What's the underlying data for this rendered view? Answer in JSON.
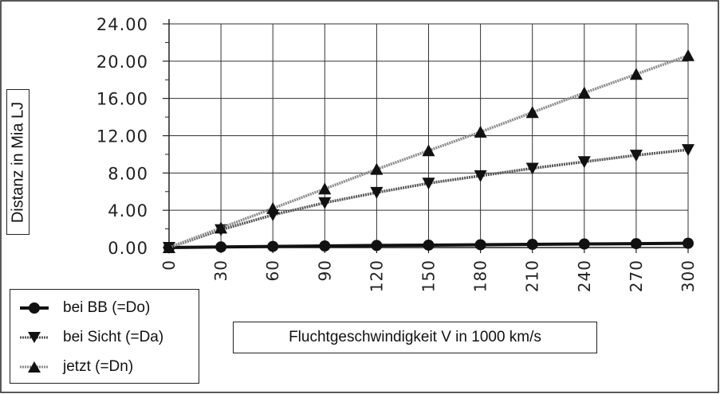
{
  "chart_data": {
    "type": "line",
    "xlabel": "Fluchtgeschwindigkeit V in 1000 km/s",
    "ylabel": "Distanz in Mia LJ",
    "x": [
      0,
      30,
      60,
      90,
      120,
      150,
      180,
      210,
      240,
      270,
      300
    ],
    "x_ticks": [
      "0",
      "30",
      "60",
      "90",
      "120",
      "150",
      "180",
      "210",
      "240",
      "270",
      "300"
    ],
    "y_ticks": [
      "0.00",
      "4.00",
      "8.00",
      "12.00",
      "16.00",
      "20.00",
      "24.00"
    ],
    "ylim": [
      0,
      24
    ],
    "grid": true,
    "legend_position": "bottom-left",
    "series": [
      {
        "name": "bei BB (=Do)",
        "marker": "circle",
        "color": "#1a1a1a",
        "values": [
          0.0,
          0.06,
          0.12,
          0.17,
          0.22,
          0.26,
          0.3,
          0.34,
          0.38,
          0.42,
          0.46
        ]
      },
      {
        "name": "bei Sicht (=Da)",
        "marker": "triangle-down",
        "color": "#2a2a2a",
        "values": [
          0.0,
          1.9,
          3.5,
          4.8,
          5.9,
          6.9,
          7.7,
          8.5,
          9.2,
          9.9,
          10.5
        ]
      },
      {
        "name": "jetzt (=Dn)",
        "marker": "triangle-up",
        "color": "#2a2a2a",
        "values": [
          0.0,
          2.1,
          4.2,
          6.3,
          8.4,
          10.4,
          12.4,
          14.5,
          16.6,
          18.6,
          20.6
        ]
      }
    ]
  }
}
